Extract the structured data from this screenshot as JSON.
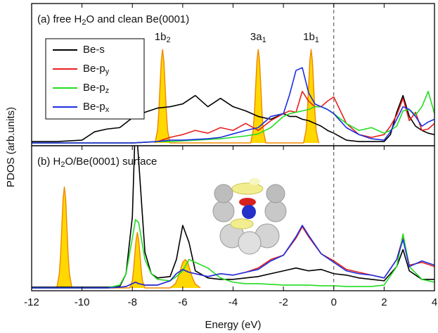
{
  "ylabel": "PDOS (arb.units)",
  "chart_data": [
    {
      "type": "line",
      "title": "(a) free H2O and clean Be(0001)",
      "xlim": [
        -12,
        4
      ],
      "ylim": [
        -0.2,
        10
      ],
      "reference_line": 0,
      "legend": "upper left",
      "x": [
        -12,
        -11,
        -10,
        -9.5,
        -9,
        -8.5,
        -8,
        -7.5,
        -7,
        -6.5,
        -6,
        -5.5,
        -5,
        -4.5,
        -4,
        -3.5,
        -3,
        -2.5,
        -2,
        -1.75,
        -1.5,
        -1.25,
        -1,
        -0.75,
        -0.5,
        -0.25,
        0,
        0.5,
        1,
        1.5,
        2,
        2.25,
        2.5,
        2.75,
        3,
        3.25,
        3.5,
        3.75,
        4
      ],
      "series": [
        {
          "name": "Be-s",
          "color": "#000000",
          "values": [
            0.1,
            0.1,
            0.2,
            0.8,
            1.0,
            1.1,
            1.8,
            2.2,
            2.5,
            2.6,
            2.8,
            3.4,
            2.6,
            3.2,
            2.6,
            2.3,
            1.9,
            1.7,
            2.1,
            1.9,
            1.9,
            1.7,
            1.6,
            1.4,
            1.2,
            0.9,
            0.7,
            0.2,
            0.1,
            0.1,
            0.1,
            0.6,
            2.2,
            3.4,
            1.9,
            1.2,
            0.9,
            0.7,
            0.6
          ]
        },
        {
          "name": "Be-py",
          "color": "#e8201c",
          "values": [
            0,
            0,
            0,
            0,
            0,
            0,
            0,
            0.05,
            0.1,
            0.4,
            0.6,
            0.9,
            0.7,
            1.1,
            0.9,
            1.4,
            0.9,
            1.6,
            2.1,
            2.3,
            2.2,
            3.7,
            3.0,
            2.6,
            2.6,
            3.0,
            3.3,
            1.4,
            0.6,
            0.4,
            0.6,
            1.2,
            2.0,
            3.2,
            1.6,
            2.2,
            0.9,
            1.0,
            1.4
          ]
        },
        {
          "name": "Be-pz",
          "color": "#22dd22",
          "values": [
            0,
            0,
            0,
            0,
            0,
            0,
            0,
            0.05,
            0.1,
            0.1,
            0.15,
            0.2,
            0.25,
            0.3,
            0.4,
            0.5,
            0.65,
            1.1,
            1.9,
            2.1,
            2.2,
            2.3,
            2.4,
            2.6,
            2.6,
            2.4,
            2.1,
            1.4,
            0.9,
            1.1,
            0.7,
            0.9,
            1.2,
            2.3,
            2.4,
            2.0,
            2.6,
            3.7,
            2.1
          ]
        },
        {
          "name": "Be-px",
          "color": "#1c2ee0",
          "values": [
            0,
            0,
            0,
            0,
            0,
            0,
            0,
            0.05,
            0.1,
            0.2,
            0.2,
            0.25,
            0.3,
            0.4,
            0.65,
            0.9,
            1.1,
            1.9,
            2.1,
            3.5,
            5.2,
            5.4,
            3.6,
            2.8,
            2.6,
            2.4,
            2.1,
            1.1,
            0.6,
            0.3,
            0.2,
            0.8,
            1.7,
            2.6,
            2.4,
            1.9,
            1.2,
            1.5,
            1.7
          ]
        },
        {
          "color": "#f08c00",
          "fill": "#ffd800",
          "x": [
            -7.1,
            -7.0,
            -6.95,
            -6.9,
            -6.85,
            -6.8,
            -6.75,
            -6.7,
            -6.65,
            -6.6,
            -6.5,
            -3.3,
            -3.2,
            -3.15,
            -3.1,
            -3.05,
            -3,
            -2.95,
            -2.9,
            -2.85,
            -2.8,
            -2.7,
            -1.2,
            -1.1,
            -1.05,
            -1.0,
            -0.95,
            -0.9,
            -0.85,
            -0.8,
            -0.75,
            -0.7,
            -0.6
          ],
          "values": [
            0,
            0.9,
            2.2,
            4.1,
            5.9,
            6.7,
            5.9,
            4.1,
            2.2,
            0.9,
            0,
            0,
            0.9,
            2.2,
            4.1,
            5.9,
            6.7,
            5.9,
            4.1,
            2.2,
            0.9,
            0,
            0,
            0.9,
            2.2,
            4.1,
            5.9,
            6.7,
            5.9,
            4.1,
            2.2,
            0.9,
            0
          ]
        }
      ],
      "annotations": [
        {
          "text": "1b2",
          "x": -6.8
        },
        {
          "text": "3a1",
          "x": -3.0
        },
        {
          "text": "1b1",
          "x": -0.9
        }
      ]
    },
    {
      "type": "line",
      "title": "(b) H2O/Be(0001) surface",
      "xlabel": "Energy (eV)",
      "xlim": [
        -12,
        4
      ],
      "ylim": [
        -0.2,
        10
      ],
      "reference_line": 0,
      "xticks": [
        -12,
        -10,
        -8,
        -6,
        -4,
        -2,
        0,
        2,
        4
      ],
      "x": [
        -12,
        -11,
        -10,
        -9,
        -8.5,
        -8.25,
        -8,
        -7.875,
        -7.75,
        -7.5,
        -7.25,
        -7,
        -6.5,
        -6.25,
        -6,
        -5.75,
        -5.5,
        -5,
        -4.5,
        -4,
        -3.5,
        -3,
        -2.5,
        -2,
        -1.5,
        -1.25,
        -1,
        -0.5,
        0,
        0.5,
        1,
        1.5,
        2,
        2.5,
        2.75,
        3,
        3.5,
        4
      ],
      "series": [
        {
          "color": "#000000",
          "values": [
            0.05,
            0.05,
            0.05,
            0.05,
            0.1,
            1.0,
            5.0,
            12,
            9,
            2.5,
            1.0,
            0.7,
            0.8,
            2.0,
            4.4,
            3.2,
            1.2,
            0.7,
            0.6,
            0.6,
            0.7,
            0.8,
            1.0,
            1.2,
            1.4,
            1.3,
            1.2,
            1.3,
            1.0,
            0.9,
            0.7,
            0.6,
            0.5,
            1.5,
            2.7,
            1.2,
            0.6,
            0.6
          ]
        },
        {
          "color": "#e8201c",
          "values": [
            0,
            0,
            0,
            0,
            0.05,
            0.1,
            0.3,
            0.4,
            0.3,
            0.2,
            0.2,
            0.2,
            0.5,
            1.0,
            1.3,
            1.1,
            1.0,
            0.8,
            1.0,
            0.9,
            1.1,
            1.4,
            2.0,
            2.3,
            3.5,
            4.3,
            3.6,
            2.4,
            1.9,
            1.3,
            1.1,
            0.9,
            0.7,
            2.0,
            3.6,
            1.6,
            1.8,
            1.5
          ]
        },
        {
          "color": "#22dd22",
          "values": [
            0,
            0,
            0,
            0,
            0.2,
            1.0,
            3.5,
            4.8,
            4.6,
            2.0,
            1.0,
            0.6,
            0.5,
            0.8,
            1.2,
            2.0,
            1.8,
            1.4,
            0.7,
            0.4,
            0.3,
            0.3,
            0.25,
            0.2,
            0.2,
            0.2,
            0.2,
            0.15,
            0.15,
            0.1,
            0.1,
            0.1,
            0.2,
            1.5,
            3.8,
            1.5,
            0.6,
            0.4
          ]
        },
        {
          "color": "#1c2ee0",
          "values": [
            0,
            0,
            0,
            0,
            0.05,
            0.1,
            0.3,
            0.4,
            0.3,
            0.2,
            0.2,
            0.2,
            0.5,
            1.0,
            1.3,
            1.1,
            1.0,
            0.8,
            1.0,
            0.9,
            1.1,
            1.3,
            1.9,
            2.3,
            3.6,
            4.4,
            3.7,
            2.4,
            1.8,
            1.2,
            1.0,
            0.9,
            0.7,
            2.0,
            3.4,
            1.5,
            1.9,
            1.6
          ]
        },
        {
          "color": "#f08c00",
          "fill": "#ffd800",
          "x": [
            -11.0,
            -10.9,
            -10.85,
            -10.8,
            -10.75,
            -10.7,
            -10.65,
            -10.6,
            -10.55,
            -10.5,
            -10.4,
            -8.1,
            -8.0,
            -7.95,
            -7.9,
            -7.85,
            -7.8,
            -7.75,
            -7.7,
            -7.65,
            -7.6,
            -7.5,
            -6.5,
            -6.3,
            -6.2,
            -6.1,
            -6.0,
            -5.9,
            -5.8,
            -5.7,
            -5.6,
            -5.5,
            -5.3
          ],
          "values": [
            0,
            1.0,
            2.3,
            4.3,
            6.3,
            7.1,
            6.3,
            4.3,
            2.3,
            1.0,
            0,
            0,
            0.5,
            1.3,
            2.4,
            3.4,
            3.9,
            3.4,
            2.4,
            1.3,
            0.5,
            0,
            0,
            0.27,
            0.65,
            1.2,
            1.8,
            2.0,
            1.8,
            1.2,
            0.65,
            0.27,
            0
          ]
        }
      ]
    }
  ]
}
